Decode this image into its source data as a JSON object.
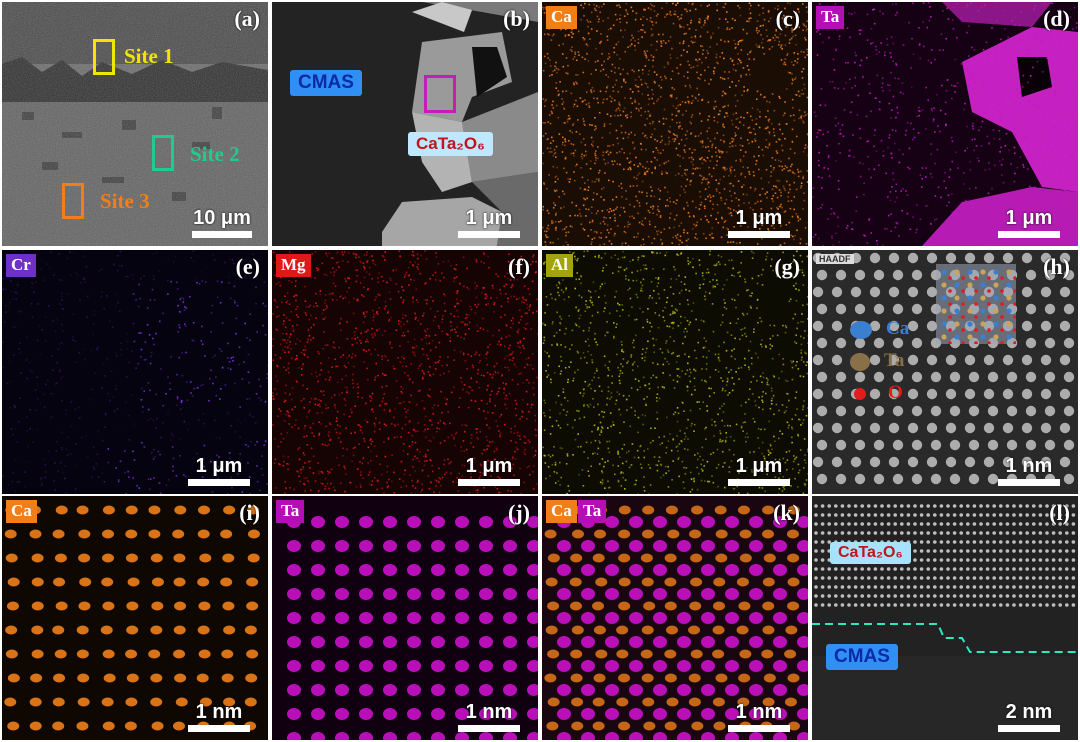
{
  "panels": {
    "a": {
      "label": "(a)",
      "scalebar": "10 μm",
      "sites": [
        {
          "label": "Site 1",
          "color": "#f2e600"
        },
        {
          "label": "Site 2",
          "color": "#1ecc8f"
        },
        {
          "label": "Site 3",
          "color": "#f07f1a"
        }
      ]
    },
    "b": {
      "label": "(b)",
      "scalebar": "1 μm",
      "tag_cmas": "CMAS",
      "tag_phase": "CaTa₂O₆",
      "box_color": "#c21fb4"
    },
    "c": {
      "label": "(c)",
      "element": "Ca",
      "scalebar": "1 μm",
      "color": "#f07f1a"
    },
    "d": {
      "label": "(d)",
      "element": "Ta",
      "scalebar": "1 μm",
      "color": "#cc11cc"
    },
    "e": {
      "label": "(e)",
      "element": "Cr",
      "scalebar": "1 μm",
      "color": "#7a2fd6"
    },
    "f": {
      "label": "(f)",
      "element": "Mg",
      "scalebar": "1 μm",
      "color": "#e01818"
    },
    "g": {
      "label": "(g)",
      "element": "Al",
      "scalebar": "1 μm",
      "color": "#b8b811"
    },
    "h": {
      "label": "(h)",
      "mode": "HAADF",
      "scalebar": "1 nm",
      "legend": [
        {
          "symbol": "Ca",
          "color": "#3b7fd0"
        },
        {
          "symbol": "Ta",
          "color": "#8a7048"
        },
        {
          "symbol": "O",
          "color": "#e21b1b"
        }
      ]
    },
    "i": {
      "label": "(i)",
      "element": "Ca",
      "scalebar": "1 nm",
      "color": "#f07f1a"
    },
    "j": {
      "label": "(j)",
      "element": "Ta",
      "scalebar": "1 nm",
      "color": "#cc11cc"
    },
    "k": {
      "label": "(k)",
      "element_1": "Ca",
      "element_2": "Ta",
      "scalebar": "1 nm"
    },
    "l": {
      "label": "(l)",
      "scalebar": "2 nm",
      "tag_phase": "CaTa₂O₆",
      "tag_cmas": "CMAS",
      "interface_color": "#2fe6c4"
    }
  }
}
